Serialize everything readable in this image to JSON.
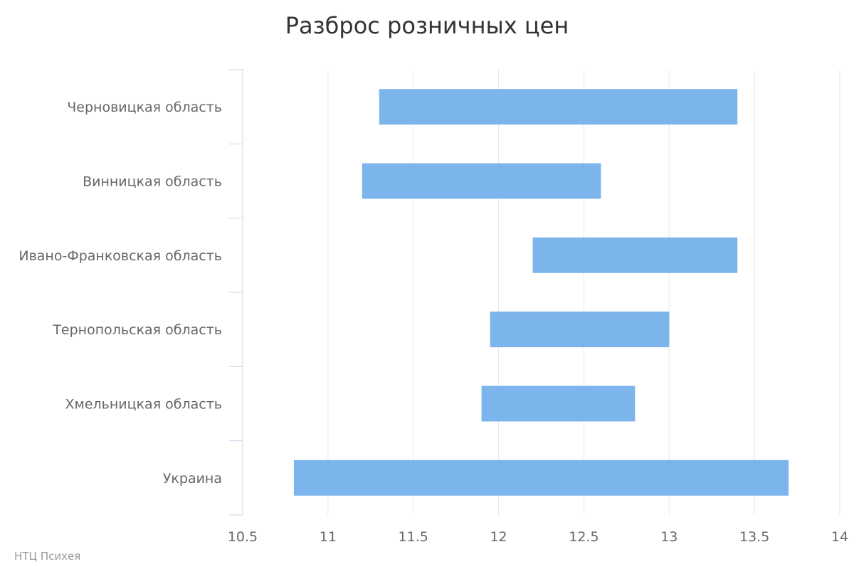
{
  "chart_data": {
    "type": "bar",
    "orientation": "horizontal",
    "title": "Разброс розничных цен",
    "categories": [
      "Черновицкая область",
      "Винницкая область",
      "Ивано-Франковская область",
      "Тернопольская область",
      "Хмельницкая область",
      "Украина"
    ],
    "series": [
      {
        "ranges": [
          [
            11.3,
            13.4
          ],
          [
            11.2,
            12.6
          ],
          [
            12.2,
            13.4
          ],
          [
            11.95,
            13.0
          ],
          [
            11.9,
            12.8
          ],
          [
            10.8,
            13.7
          ]
        ]
      }
    ],
    "xlim": [
      10.5,
      14
    ],
    "xticks": [
      "10.5",
      "11",
      "11.5",
      "12",
      "12.5",
      "13",
      "13.5",
      "14"
    ],
    "grid": true,
    "bar_color": "#7cb5ec",
    "grid_color": "#e6e6e6",
    "axis_color": "#ccd6eb"
  },
  "credit": "НТЦ Психея"
}
